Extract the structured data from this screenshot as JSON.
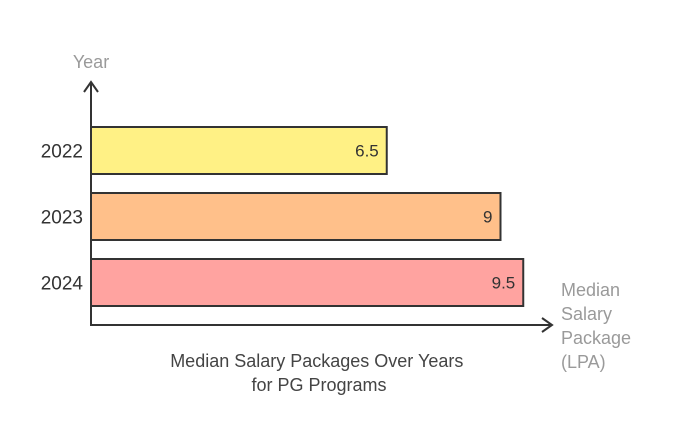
{
  "chart_data": {
    "type": "bar",
    "orientation": "horizontal",
    "title": [
      "Median Salary Packages Over Years",
      "for PG Programs"
    ],
    "ylabel": "Year",
    "xlabel": [
      "Median",
      "Salary",
      "Package",
      "(LPA)"
    ],
    "categories": [
      "2022",
      "2023",
      "2024"
    ],
    "values": [
      6.5,
      9,
      9.5
    ],
    "value_labels": [
      "6.5",
      "9",
      "9.5"
    ],
    "colors": [
      "#fff185",
      "#ffc08a",
      "#ffa3a0"
    ],
    "xlim": [
      0,
      10
    ]
  }
}
